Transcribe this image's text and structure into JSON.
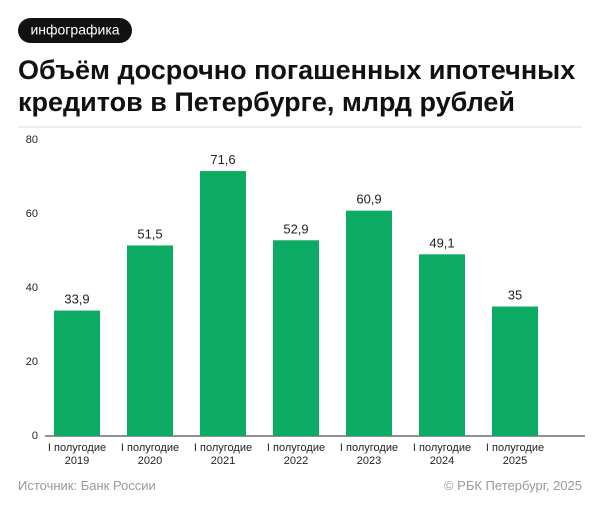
{
  "chart_data": {
    "type": "bar",
    "badge": "инфографика",
    "title": [
      "Объём досрочно погашенных ипотечных",
      "кредитов в Петербурге, млрд рублей"
    ],
    "categories": [
      [
        "I полугодие",
        "2019"
      ],
      [
        "I полугодие",
        "2020"
      ],
      [
        "I полугодие",
        "2021"
      ],
      [
        "I полугодие",
        "2022"
      ],
      [
        "I полугодие",
        "2023"
      ],
      [
        "I полугодие",
        "2024"
      ],
      [
        "I полугодие",
        "2025"
      ]
    ],
    "values": [
      33.9,
      51.5,
      71.6,
      52.9,
      60.9,
      49.1,
      35
    ],
    "value_labels": [
      "33,9",
      "51,5",
      "71,6",
      "52,9",
      "60,9",
      "49,1",
      "35"
    ],
    "color": "#0bab63",
    "ylim": [
      0,
      80
    ],
    "yticks": [
      0,
      20,
      40,
      60,
      80
    ],
    "grid": false,
    "source": "Источник: Банк России",
    "copyright": "© РБК Петербург, 2025"
  }
}
